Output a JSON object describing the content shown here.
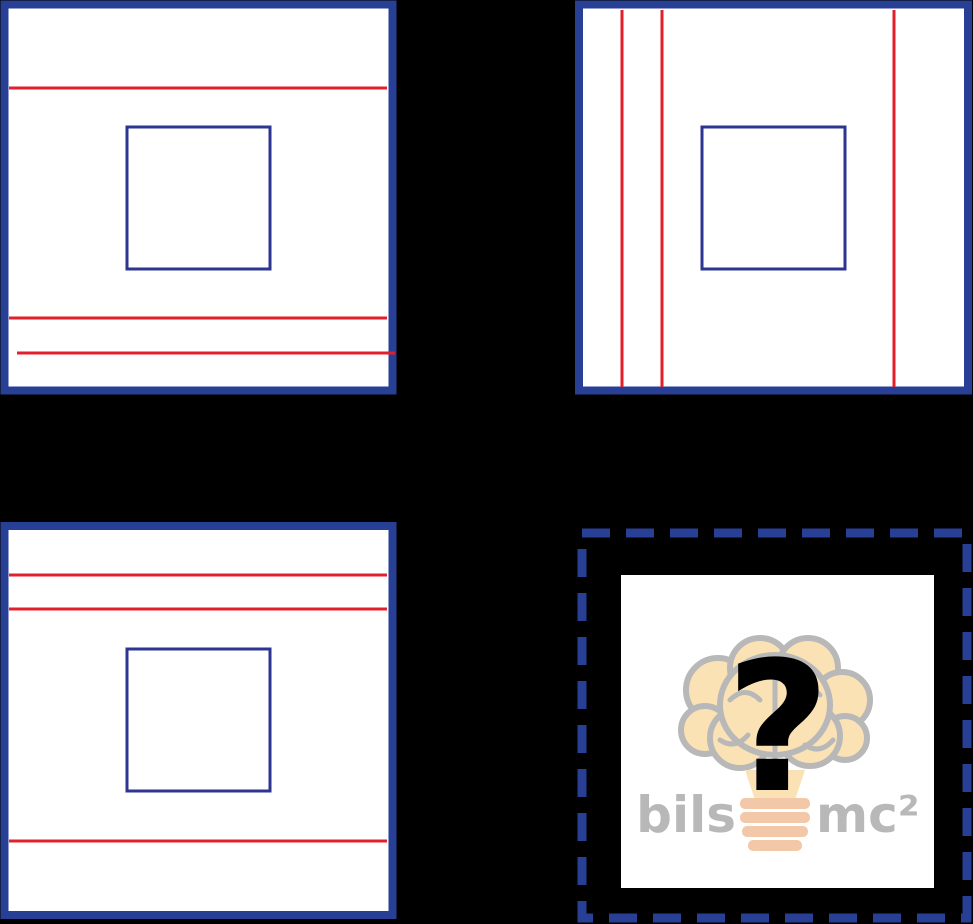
{
  "puzzle": {
    "question_mark": "?",
    "logo": {
      "left_text": "bils",
      "right_text": "mc²"
    },
    "colors": {
      "background": "#000000",
      "frame": "#273f94",
      "inner_square": "#2e3591",
      "line": "#e11f2d",
      "tile_fill": "#ffffff",
      "logo_gray": "#b8b8b8",
      "logo_brain": "#fbe2b5",
      "logo_coil": "#f2c8a8"
    }
  }
}
